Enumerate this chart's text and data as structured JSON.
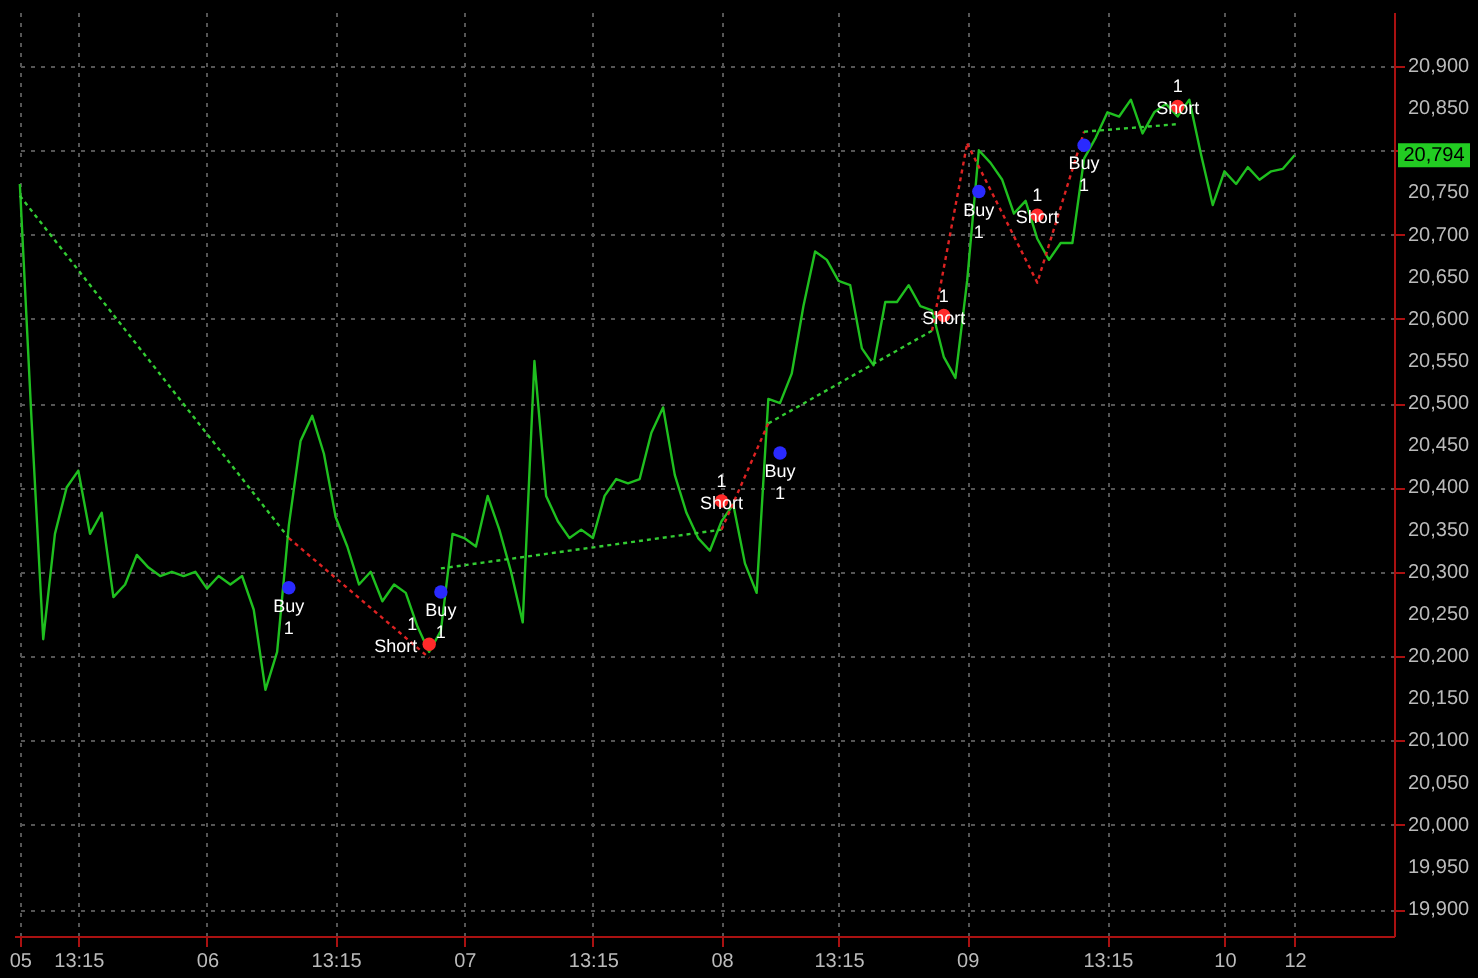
{
  "chart_data": {
    "type": "line",
    "categories": [
      "05",
      null,
      null,
      null,
      null,
      "13:15",
      null,
      null,
      null,
      null,
      null,
      null,
      null,
      null,
      null,
      null,
      "06",
      null,
      null,
      null,
      null,
      null,
      null,
      null,
      null,
      null,
      null,
      "13:15",
      null,
      null,
      null,
      null,
      null,
      null,
      null,
      null,
      null,
      null,
      "07",
      null,
      null,
      null,
      null,
      null,
      null,
      null,
      null,
      null,
      null,
      "13:15",
      null,
      null,
      null,
      null,
      null,
      null,
      null,
      null,
      null,
      null,
      "08",
      null,
      null,
      null,
      null,
      null,
      null,
      null,
      null,
      null,
      "13:15",
      null,
      null,
      null,
      null,
      null,
      null,
      null,
      null,
      null,
      null,
      "09",
      null,
      null,
      null,
      null,
      null,
      null,
      null,
      null,
      null,
      null,
      null,
      "13:15",
      null,
      null,
      null,
      null,
      null,
      null,
      null,
      null,
      null,
      "10",
      null,
      null,
      null,
      null,
      null,
      "12",
      null,
      null,
      null,
      null,
      null,
      null,
      null,
      null
    ],
    "ylim": [
      19868,
      20964
    ],
    "yticks": [
      {
        "value": 19900,
        "label": "19,900"
      },
      {
        "value": 19950,
        "label": "19,950"
      },
      {
        "value": 20000,
        "label": "20,000"
      },
      {
        "value": 20050,
        "label": "20,050"
      },
      {
        "value": 20100,
        "label": "20,100"
      },
      {
        "value": 20150,
        "label": "20,150"
      },
      {
        "value": 20200,
        "label": "20,200"
      },
      {
        "value": 20250,
        "label": "20,250"
      },
      {
        "value": 20300,
        "label": "20,300"
      },
      {
        "value": 20350,
        "label": "20,350"
      },
      {
        "value": 20400,
        "label": "20,400"
      },
      {
        "value": 20450,
        "label": "20,450"
      },
      {
        "value": 20500,
        "label": "20,500"
      },
      {
        "value": 20550,
        "label": "20,550"
      },
      {
        "value": 20600,
        "label": "20,600"
      },
      {
        "value": 20650,
        "label": "20,650"
      },
      {
        "value": 20700,
        "label": "20,700"
      },
      {
        "value": 20750,
        "label": "20,750"
      },
      {
        "value": 20800,
        "label": null
      },
      {
        "value": 20850,
        "label": "20,850"
      },
      {
        "value": 20900,
        "label": "20,900"
      }
    ],
    "grid": true,
    "series": [
      {
        "color": "#1fbf1f",
        "line_style": "solid",
        "marker": "none",
        "values": [
          20760,
          20480,
          20220,
          20345,
          20400,
          20420,
          20345,
          20370,
          20270,
          20285,
          20320,
          20305,
          20295,
          20300,
          20295,
          20300,
          20280,
          20295,
          20285,
          20295,
          20255,
          20160,
          20205,
          20355,
          20455,
          20485,
          20440,
          20365,
          20330,
          20285,
          20300,
          20265,
          20285,
          20275,
          20235,
          20205,
          20230,
          20345,
          20340,
          20330,
          20390,
          20350,
          20300,
          20240,
          20550,
          20390,
          20360,
          20340,
          20350,
          20340,
          20390,
          20410,
          20405,
          20410,
          20465,
          20495,
          20415,
          20370,
          20340,
          20325,
          20360,
          20380,
          20310,
          20275,
          20505,
          20500,
          20535,
          20615,
          20680,
          20670,
          20645,
          20640,
          20565,
          20545,
          20620,
          20620,
          20640,
          20615,
          20610,
          20555,
          20530,
          20645,
          20800,
          20785,
          20765,
          20725,
          20740,
          20695,
          20670,
          20690,
          20690,
          20790,
          20815,
          20845,
          20840,
          20860,
          20820,
          20845,
          20855,
          20840,
          20860,
          20795,
          20735,
          20775,
          20760,
          20780,
          20765,
          20775,
          20778,
          20794,
          null,
          null,
          null,
          null,
          null,
          null,
          null,
          null
        ]
      },
      {
        "type": "line",
        "color": "#33cc33",
        "line_style": "dotted",
        "marker": "none",
        "values": [
          20746,
          null,
          null,
          null,
          null,
          null,
          null,
          null,
          null,
          null,
          null,
          null,
          null,
          null,
          null,
          null,
          null,
          null,
          null,
          null,
          null,
          null,
          null,
          20340,
          null,
          null,
          null,
          null,
          null,
          null,
          null,
          null,
          null,
          null,
          null,
          null,
          null,
          null,
          null,
          null,
          null,
          null,
          null,
          null,
          null,
          null,
          null,
          null,
          null,
          null,
          null,
          null,
          null,
          null,
          null,
          null,
          null,
          null,
          null,
          null,
          null,
          null,
          null,
          null,
          null,
          null,
          null,
          null,
          null,
          null,
          null,
          null,
          null,
          null,
          null,
          null,
          null,
          null,
          null,
          null,
          null,
          null,
          null,
          null,
          null,
          null,
          null,
          null,
          null,
          null,
          null,
          null,
          null,
          null,
          null,
          null,
          null,
          null,
          null,
          null,
          null,
          null,
          null,
          null,
          null,
          null,
          null,
          null,
          null,
          null,
          null,
          null,
          null,
          null,
          null,
          null,
          null,
          null
        ]
      },
      {
        "type": "line",
        "color": "#dd2222",
        "line_style": "dotted",
        "marker": "none",
        "values": [
          null,
          null,
          null,
          null,
          null,
          null,
          null,
          null,
          null,
          null,
          null,
          null,
          null,
          null,
          null,
          null,
          null,
          null,
          null,
          null,
          null,
          null,
          null,
          20340,
          null,
          null,
          null,
          null,
          null,
          null,
          null,
          null,
          null,
          null,
          null,
          20198,
          null,
          null,
          null,
          null,
          null,
          null,
          null,
          null,
          null,
          null,
          null,
          null,
          null,
          null,
          null,
          null,
          null,
          null,
          null,
          null,
          null,
          null,
          null,
          null,
          null,
          null,
          null,
          null,
          null,
          null,
          null,
          null,
          null,
          null,
          null,
          null,
          null,
          null,
          null,
          null,
          null,
          null,
          null,
          null,
          null,
          null,
          null,
          null,
          null,
          null,
          null,
          null,
          null,
          null,
          null,
          null,
          null,
          null,
          null,
          null,
          null,
          null,
          null,
          null,
          null,
          null,
          null,
          null,
          null,
          null,
          null,
          null,
          null,
          null,
          null,
          null,
          null,
          null,
          null,
          null,
          null,
          null
        ]
      },
      {
        "type": "line",
        "color": "#33cc33",
        "line_style": "dotted",
        "marker": "none",
        "values": [
          null,
          null,
          null,
          null,
          null,
          null,
          null,
          null,
          null,
          null,
          null,
          null,
          null,
          null,
          null,
          null,
          null,
          null,
          null,
          null,
          null,
          null,
          null,
          null,
          null,
          null,
          null,
          null,
          null,
          null,
          null,
          null,
          null,
          null,
          null,
          null,
          20304,
          null,
          null,
          null,
          null,
          null,
          null,
          null,
          null,
          null,
          null,
          null,
          null,
          null,
          null,
          null,
          null,
          null,
          null,
          null,
          null,
          null,
          null,
          null,
          20350,
          null,
          null,
          null,
          null,
          null,
          null,
          null,
          null,
          null,
          null,
          null,
          null,
          null,
          null,
          null,
          null,
          null,
          null,
          null,
          null,
          null,
          null,
          null,
          null,
          null,
          null,
          null,
          null,
          null,
          null,
          null,
          null,
          null,
          null,
          null,
          null,
          null,
          null,
          null,
          null,
          null,
          null,
          null,
          null,
          null,
          null,
          null,
          null,
          null,
          null,
          null,
          null,
          null,
          null,
          null,
          null,
          null
        ]
      },
      {
        "type": "line",
        "color": "#dd2222",
        "line_style": "dotted",
        "marker": "none",
        "values": [
          null,
          null,
          null,
          null,
          null,
          null,
          null,
          null,
          null,
          null,
          null,
          null,
          null,
          null,
          null,
          null,
          null,
          null,
          null,
          null,
          null,
          null,
          null,
          null,
          null,
          null,
          null,
          null,
          null,
          null,
          null,
          null,
          null,
          null,
          null,
          null,
          null,
          null,
          null,
          null,
          null,
          null,
          null,
          null,
          null,
          null,
          null,
          null,
          null,
          null,
          null,
          null,
          null,
          null,
          null,
          null,
          null,
          null,
          null,
          null,
          20350,
          null,
          null,
          null,
          20476,
          null,
          null,
          null,
          null,
          null,
          null,
          null,
          null,
          null,
          null,
          null,
          null,
          null,
          null,
          null,
          null,
          null,
          null,
          null,
          null,
          null,
          null,
          null,
          null,
          null,
          null,
          null,
          null,
          null,
          null,
          null,
          null,
          null,
          null,
          null,
          null,
          null,
          null,
          null,
          null,
          null,
          null,
          null,
          null,
          null,
          null,
          null,
          null,
          null,
          null,
          null,
          null,
          null
        ]
      },
      {
        "type": "line",
        "color": "#33cc33",
        "line_style": "dotted",
        "marker": "none",
        "values": [
          null,
          null,
          null,
          null,
          null,
          null,
          null,
          null,
          null,
          null,
          null,
          null,
          null,
          null,
          null,
          null,
          null,
          null,
          null,
          null,
          null,
          null,
          null,
          null,
          null,
          null,
          null,
          null,
          null,
          null,
          null,
          null,
          null,
          null,
          null,
          null,
          null,
          null,
          null,
          null,
          null,
          null,
          null,
          null,
          null,
          null,
          null,
          null,
          null,
          null,
          null,
          null,
          null,
          null,
          null,
          null,
          null,
          null,
          null,
          null,
          null,
          null,
          null,
          null,
          20476,
          null,
          null,
          null,
          null,
          null,
          null,
          null,
          null,
          null,
          null,
          null,
          null,
          null,
          20586,
          null,
          null,
          null,
          null,
          null,
          null,
          null,
          null,
          null,
          null,
          null,
          null,
          null,
          null,
          null,
          null,
          null,
          null,
          null,
          null,
          null,
          null,
          null,
          null,
          null,
          null,
          null,
          null,
          null,
          null,
          null,
          null,
          null,
          null,
          null,
          null,
          null,
          null,
          null
        ]
      },
      {
        "type": "line",
        "color": "#dd2222",
        "line_style": "dotted",
        "marker": "none",
        "values": [
          null,
          null,
          null,
          null,
          null,
          null,
          null,
          null,
          null,
          null,
          null,
          null,
          null,
          null,
          null,
          null,
          null,
          null,
          null,
          null,
          null,
          null,
          null,
          null,
          null,
          null,
          null,
          null,
          null,
          null,
          null,
          null,
          null,
          null,
          null,
          null,
          null,
          null,
          null,
          null,
          null,
          null,
          null,
          null,
          null,
          null,
          null,
          null,
          null,
          null,
          null,
          null,
          null,
          null,
          null,
          null,
          null,
          null,
          null,
          null,
          null,
          null,
          null,
          null,
          null,
          null,
          null,
          null,
          null,
          null,
          null,
          null,
          null,
          null,
          null,
          null,
          null,
          null,
          20586,
          null,
          null,
          20808,
          null,
          null,
          null,
          null,
          null,
          null,
          null,
          null,
          null,
          null,
          null,
          null,
          null,
          null,
          null,
          null,
          null,
          null,
          null,
          null,
          null,
          null,
          null,
          null,
          null,
          null,
          null,
          null,
          null,
          null,
          null,
          null,
          null,
          null,
          null,
          null
        ]
      },
      {
        "type": "line",
        "color": "#dd2222",
        "line_style": "dotted",
        "marker": "none",
        "values": [
          null,
          null,
          null,
          null,
          null,
          null,
          null,
          null,
          null,
          null,
          null,
          null,
          null,
          null,
          null,
          null,
          null,
          null,
          null,
          null,
          null,
          null,
          null,
          null,
          null,
          null,
          null,
          null,
          null,
          null,
          null,
          null,
          null,
          null,
          null,
          null,
          null,
          null,
          null,
          null,
          null,
          null,
          null,
          null,
          null,
          null,
          null,
          null,
          null,
          null,
          null,
          null,
          null,
          null,
          null,
          null,
          null,
          null,
          null,
          null,
          null,
          null,
          null,
          null,
          null,
          null,
          null,
          null,
          null,
          null,
          null,
          null,
          null,
          null,
          null,
          null,
          null,
          null,
          null,
          null,
          null,
          20808,
          null,
          null,
          null,
          null,
          null,
          20643,
          null,
          null,
          null,
          20822,
          null,
          null,
          null,
          null,
          null,
          null,
          null,
          null,
          null,
          null,
          null,
          null,
          null,
          null,
          null,
          null,
          null,
          null,
          null,
          null,
          null,
          null,
          null,
          null,
          null,
          null
        ]
      },
      {
        "type": "line",
        "color": "#33cc33",
        "line_style": "dotted",
        "marker": "none",
        "values": [
          null,
          null,
          null,
          null,
          null,
          null,
          null,
          null,
          null,
          null,
          null,
          null,
          null,
          null,
          null,
          null,
          null,
          null,
          null,
          null,
          null,
          null,
          null,
          null,
          null,
          null,
          null,
          null,
          null,
          null,
          null,
          null,
          null,
          null,
          null,
          null,
          null,
          null,
          null,
          null,
          null,
          null,
          null,
          null,
          null,
          null,
          null,
          null,
          null,
          null,
          null,
          null,
          null,
          null,
          null,
          null,
          null,
          null,
          null,
          null,
          null,
          null,
          null,
          null,
          null,
          null,
          null,
          null,
          null,
          null,
          null,
          null,
          null,
          null,
          null,
          null,
          null,
          null,
          null,
          null,
          null,
          null,
          null,
          null,
          null,
          null,
          null,
          null,
          null,
          null,
          null,
          20822,
          null,
          null,
          null,
          null,
          null,
          null,
          null,
          20831,
          null,
          null,
          null,
          null,
          null,
          null,
          null,
          null,
          null,
          null,
          null,
          null,
          null,
          null,
          null,
          null,
          null,
          null
        ]
      },
      {
        "type": "scatter",
        "color": "#2a2aff",
        "marker": "circle",
        "values": [
          null,
          null,
          null,
          null,
          null,
          null,
          null,
          null,
          null,
          null,
          null,
          null,
          null,
          null,
          null,
          null,
          null,
          null,
          null,
          null,
          null,
          null,
          null,
          20281,
          null,
          null,
          null,
          null,
          null,
          null,
          null,
          null,
          null,
          null,
          null,
          null,
          20276,
          null,
          null,
          null,
          null,
          null,
          null,
          null,
          null,
          null,
          null,
          null,
          null,
          null,
          null,
          null,
          null,
          null,
          null,
          null,
          null,
          null,
          null,
          null,
          null,
          null,
          null,
          null,
          null,
          20441,
          null,
          null,
          null,
          null,
          null,
          null,
          null,
          null,
          null,
          null,
          null,
          null,
          null,
          null,
          null,
          null,
          20751,
          null,
          null,
          null,
          null,
          null,
          null,
          null,
          null,
          20806,
          null,
          null,
          null,
          null,
          null,
          null,
          null,
          null,
          null,
          null,
          null,
          null,
          null,
          null,
          null,
          null,
          null,
          null,
          null,
          null,
          null,
          null,
          null,
          null,
          null,
          null
        ]
      },
      {
        "type": "scatter",
        "color": "#ff2a2a",
        "marker": "circle",
        "values": [
          null,
          null,
          null,
          null,
          null,
          null,
          null,
          null,
          null,
          null,
          null,
          null,
          null,
          null,
          null,
          null,
          null,
          null,
          null,
          null,
          null,
          null,
          null,
          null,
          null,
          null,
          null,
          null,
          null,
          null,
          null,
          null,
          null,
          null,
          null,
          20214,
          null,
          null,
          null,
          null,
          null,
          null,
          null,
          null,
          null,
          null,
          null,
          null,
          null,
          null,
          null,
          null,
          null,
          null,
          null,
          null,
          null,
          null,
          null,
          null,
          20384,
          null,
          null,
          null,
          null,
          null,
          null,
          null,
          null,
          null,
          null,
          null,
          null,
          null,
          null,
          null,
          null,
          null,
          null,
          20604,
          null,
          null,
          null,
          null,
          null,
          null,
          null,
          20723,
          null,
          null,
          null,
          null,
          null,
          null,
          null,
          null,
          null,
          null,
          null,
          20852,
          null,
          null,
          null,
          null,
          null,
          null,
          null,
          null,
          null,
          null,
          null,
          null,
          null,
          null,
          null,
          null,
          null,
          null
        ]
      }
    ],
    "annotations": [
      "Buy 1",
      "Buy 1",
      "Buy 1",
      "Buy 1",
      "Buy 1",
      "1 Short",
      "1 Short",
      "1 Short",
      "1 Short",
      "1 Short",
      "20,794"
    ]
  }
}
